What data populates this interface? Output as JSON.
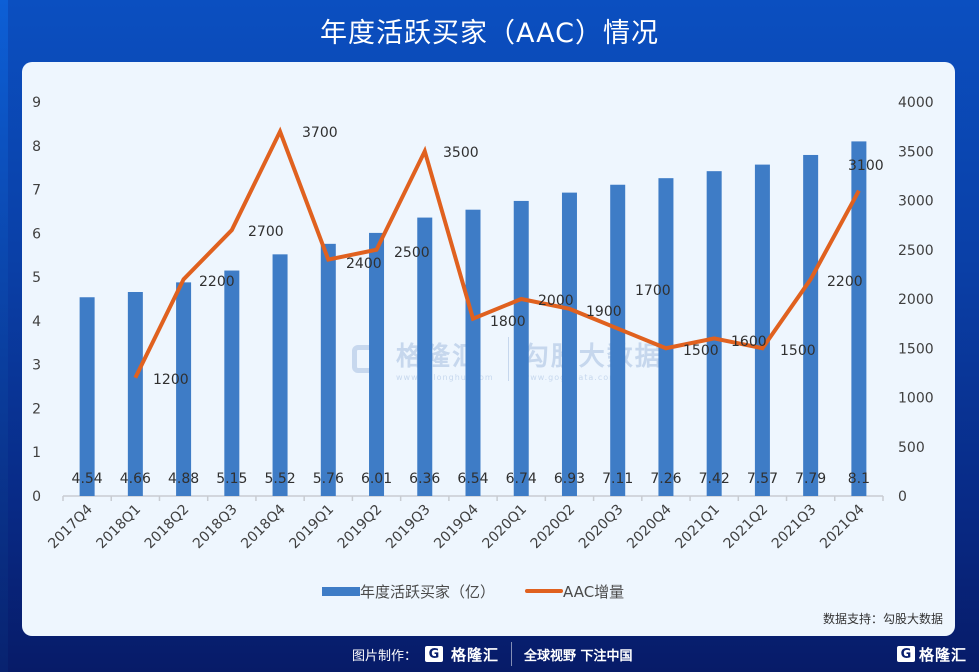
{
  "header": {
    "title": "年度活跃买家（AAC）情况"
  },
  "chart_data": {
    "type": "bar+line",
    "title": "年度活跃买家（AAC）情况",
    "categories": [
      "2017Q4",
      "2018Q1",
      "2018Q2",
      "2018Q3",
      "2018Q4",
      "2019Q1",
      "2019Q2",
      "2019Q3",
      "2019Q4",
      "2020Q1",
      "2020Q2",
      "2020Q3",
      "2020Q4",
      "2021Q1",
      "2021Q2",
      "2021Q3",
      "2021Q4"
    ],
    "series": [
      {
        "name": "年度活跃买家（亿）",
        "type": "bar",
        "axis": "left",
        "color": "#3e7cc6",
        "values": [
          4.54,
          4.66,
          4.88,
          5.15,
          5.52,
          5.76,
          6.01,
          6.36,
          6.54,
          6.74,
          6.93,
          7.11,
          7.26,
          7.42,
          7.57,
          7.79,
          8.1
        ],
        "labels": [
          "4.54",
          "4.66",
          "4.88",
          "5.15",
          "5.52",
          "5.76",
          "6.01",
          "6.36",
          "6.54",
          "6.74",
          "6.93",
          "7.11",
          "7.26",
          "7.42",
          "7.57",
          "7.79",
          "8.1"
        ]
      },
      {
        "name": "AAC增量",
        "type": "line",
        "axis": "right",
        "color": "#e0611f",
        "values": [
          null,
          1200,
          2200,
          2700,
          3700,
          2400,
          2500,
          3500,
          1800,
          2000,
          1900,
          1700,
          1500,
          1600,
          1500,
          2200,
          3100
        ],
        "labels": [
          null,
          "1200",
          "2200",
          "2700",
          "3700",
          "2400",
          "2500",
          "3500",
          "1800",
          "2000",
          "1900",
          "1700",
          "1500",
          "1600",
          "1500",
          "2200",
          "3100"
        ]
      }
    ],
    "left_axis": {
      "min": 0,
      "max": 9,
      "ticks": [
        0,
        1,
        2,
        3,
        4,
        5,
        6,
        7,
        8,
        9
      ]
    },
    "right_axis": {
      "min": 0,
      "max": 4000,
      "ticks": [
        0,
        500,
        1000,
        1500,
        2000,
        2500,
        3000,
        3500,
        4000
      ]
    },
    "xlabel": "",
    "ylabel": "",
    "grid": false,
    "legend_position": "bottom"
  },
  "legend": {
    "bar_label": "年度活跃买家（亿）",
    "line_label": "AAC增量"
  },
  "source": "数据支持：勾股大数据",
  "watermark": {
    "left_brand": "格隆汇",
    "left_url": "www.gelonghui.com",
    "right_brand": "勾股大数据",
    "right_url": "www.gogudata.com"
  },
  "footer": {
    "made_by_label": "图片制作：",
    "logo_letter": "G",
    "logo_text": "格隆汇",
    "slogan": "全球视野 下注中国",
    "right_logo_letter": "G",
    "right_logo_text": "格隆汇"
  }
}
